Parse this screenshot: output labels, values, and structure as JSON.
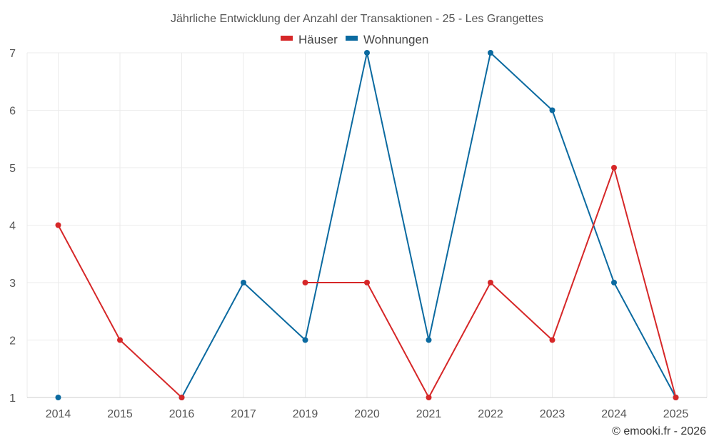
{
  "chart_data": {
    "type": "line",
    "title": "Jährliche Entwicklung der Anzahl der Transaktionen - 25 - Les Grangettes",
    "categories": [
      "2014",
      "2015",
      "2016",
      "2017",
      "2019",
      "2020",
      "2021",
      "2022",
      "2023",
      "2024",
      "2025"
    ],
    "series": [
      {
        "name": "Häuser",
        "color": "#d62728",
        "values": [
          4,
          2,
          1,
          null,
          3,
          3,
          1,
          3,
          2,
          5,
          1
        ]
      },
      {
        "name": "Wohnungen",
        "color": "#0b6aa0",
        "values": [
          1,
          null,
          1,
          3,
          2,
          7,
          2,
          7,
          6,
          3,
          1
        ]
      }
    ],
    "yticks": [
      1,
      2,
      3,
      4,
      5,
      6,
      7
    ],
    "ylim": [
      1,
      7
    ],
    "xlabel": "",
    "ylabel": "",
    "grid": true,
    "legend_position": "top-center"
  },
  "credit": "© emooki.fr - 2026"
}
